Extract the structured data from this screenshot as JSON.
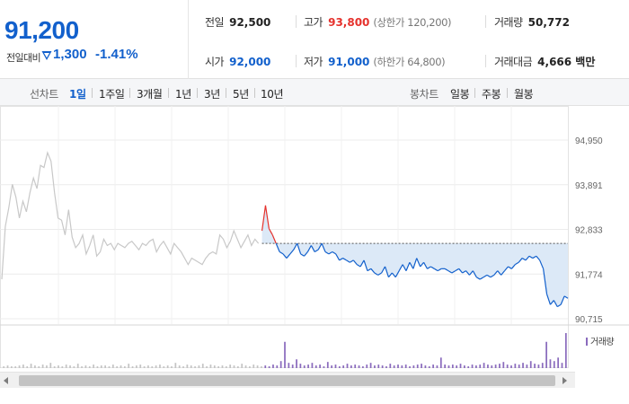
{
  "quote": {
    "price": "91,200",
    "change_label": "전일대비",
    "change_amount": "1,300",
    "change_pct": "-1.41%",
    "prev_close_label": "전일",
    "prev_close": "92,500",
    "high_label": "고가",
    "high": "93,800",
    "upper_limit": "(상한가 120,200)",
    "volume_label": "거래량",
    "volume": "50,772",
    "open_label": "시가",
    "open": "92,000",
    "low_label": "저가",
    "low": "91,000",
    "lower_limit": "(하한가 64,800)",
    "trade_value_label": "거래대금",
    "trade_value": "4,666 백만"
  },
  "toolbar": {
    "line_chart_label": "선차트",
    "periods": [
      "1일",
      "1주일",
      "3개월",
      "1년",
      "3년",
      "5년",
      "10년"
    ],
    "active_period": "1일",
    "candle_chart_label": "봉차트",
    "candle_periods": [
      "일봉",
      "주봉",
      "월봉"
    ]
  },
  "colors": {
    "up": "#e5322d",
    "down": "#1260cc",
    "previous_day_line": "#c8c8c8",
    "fill_below_prev_close": "#dce9f7",
    "volume_bar": "#8a6bbd"
  },
  "icons": {
    "change_direction": "triangle-down-icon"
  },
  "chart_data": {
    "type": "line",
    "yticks": [
      "94,950",
      "93,891",
      "92,833",
      "91,774",
      "90,715"
    ],
    "ylim": [
      90715,
      94950
    ],
    "reference_line": 92500,
    "volume_legend": "거래량",
    "series": [
      {
        "values": [
          91650,
          92900,
          93350,
          93900,
          93600,
          93100,
          93500,
          93250,
          93700,
          94050,
          93800,
          94350,
          94300,
          94650,
          94450,
          93700,
          93100,
          93050,
          92700,
          93300,
          92650,
          92400,
          92500,
          92700,
          92250,
          92450,
          92700,
          92200,
          92300,
          92600,
          92450,
          92500,
          92350,
          92500,
          92450,
          92400,
          92500,
          92550,
          92450,
          92350,
          92500,
          92450,
          92550,
          92600,
          92300,
          92450,
          92550,
          92400,
          92250,
          92500,
          92400,
          92300,
          92150,
          92000,
          92150,
          92100,
          92050,
          92000,
          92150,
          92250,
          92300,
          92250,
          92700,
          92600,
          92400,
          92550,
          92800,
          92600,
          92400,
          92550,
          92700,
          92450,
          92600,
          92500
        ]
      },
      {
        "values": [
          92800,
          93400,
          92850,
          92700,
          92500,
          92300,
          92250,
          92150,
          92250,
          92350,
          92500,
          92250,
          92200,
          92300,
          92450,
          92300,
          92350,
          92500,
          92300,
          92250,
          92300,
          92250,
          92100,
          92150,
          92100,
          92050,
          92100,
          92000,
          91950,
          92100,
          91850,
          91900,
          91800,
          91750,
          91800,
          91950,
          91700,
          91800,
          91700,
          91850,
          92000,
          91850,
          92050,
          91900,
          92150,
          91950,
          92050,
          91900,
          91950,
          91900,
          91850,
          91900,
          91900,
          91850,
          91800,
          91850,
          91900,
          91800,
          91850,
          91750,
          91850,
          91700,
          91650,
          91700,
          91750,
          91700,
          91750,
          91850,
          91750,
          91850,
          91950,
          91900,
          92000,
          92050,
          92150,
          92100,
          92200,
          92150,
          92200,
          92100,
          91900,
          91300,
          91050,
          91150,
          91000,
          91050,
          91250,
          91200
        ]
      }
    ],
    "volume": [
      2,
      3,
      2,
      2,
      3,
      4,
      2,
      5,
      3,
      2,
      4,
      3,
      6,
      2,
      3,
      2,
      4,
      3,
      2,
      5,
      2,
      3,
      2,
      4,
      2,
      3,
      3,
      2,
      4,
      2,
      3,
      2,
      5,
      2,
      3,
      4,
      2,
      3,
      2,
      3,
      4,
      2,
      3,
      2,
      6,
      3,
      2,
      4,
      3,
      2,
      3,
      5,
      2,
      4,
      3,
      2,
      3,
      2,
      4,
      3,
      2,
      5,
      3,
      2,
      4,
      3,
      2,
      3,
      2,
      4,
      3,
      8,
      30,
      6,
      4,
      10,
      5,
      3,
      4,
      6,
      3,
      4,
      2,
      7,
      3,
      4,
      2,
      3,
      5,
      3,
      4,
      3,
      2,
      4,
      6,
      3,
      4,
      3,
      2,
      5,
      3,
      4,
      3,
      4,
      2,
      3,
      4,
      5,
      3,
      2,
      4,
      3,
      12,
      4,
      3,
      4,
      3,
      5,
      3,
      2,
      4,
      3,
      4,
      6,
      4,
      3,
      4,
      5,
      7,
      4,
      3,
      5,
      4,
      6,
      4,
      8,
      5,
      4,
      6,
      30,
      10,
      8,
      12,
      6,
      40
    ]
  }
}
